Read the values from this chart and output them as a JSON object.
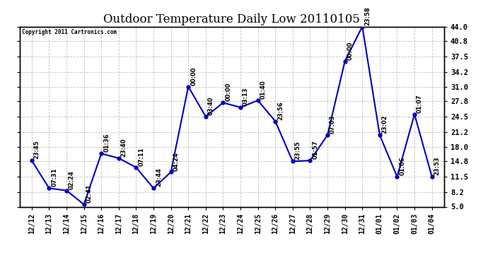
{
  "title": "Outdoor Temperature Daily Low 20110105",
  "copyright": "Copyright 2011 Cartronics.com",
  "x_labels": [
    "12/12",
    "12/13",
    "12/14",
    "12/15",
    "12/16",
    "12/17",
    "12/18",
    "12/19",
    "12/20",
    "12/21",
    "12/22",
    "12/23",
    "12/24",
    "12/25",
    "12/26",
    "12/27",
    "12/28",
    "12/29",
    "12/30",
    "12/31",
    "01/01",
    "01/02",
    "01/03",
    "01/04"
  ],
  "y_values": [
    15.0,
    9.0,
    8.5,
    5.5,
    16.5,
    15.5,
    13.5,
    9.0,
    12.5,
    31.0,
    24.5,
    27.5,
    26.5,
    28.0,
    23.5,
    14.8,
    15.0,
    20.5,
    36.5,
    44.0,
    20.5,
    11.5,
    25.0,
    11.5
  ],
  "time_labels": [
    "23:45",
    "07:31",
    "02:24",
    "02:41",
    "01:36",
    "23:40",
    "07:11",
    "23:44",
    "04:24",
    "00:00",
    "03:40",
    "00:00",
    "03:13",
    "01:40",
    "23:56",
    "23:55",
    "01:57",
    "07:03",
    "00:00",
    "23:58",
    "23:02",
    "01:06",
    "01:07",
    "23:53"
  ],
  "line_color": "#0000bb",
  "marker_color": "#0000bb",
  "background_color": "#ffffff",
  "grid_color": "#bbbbbb",
  "title_fontsize": 12,
  "label_fontsize": 7,
  "time_fontsize": 6,
  "y_min": 5.0,
  "y_max": 44.0,
  "y_ticks": [
    5.0,
    8.2,
    11.5,
    14.8,
    18.0,
    21.2,
    24.5,
    27.8,
    31.0,
    34.2,
    37.5,
    40.8,
    44.0
  ]
}
